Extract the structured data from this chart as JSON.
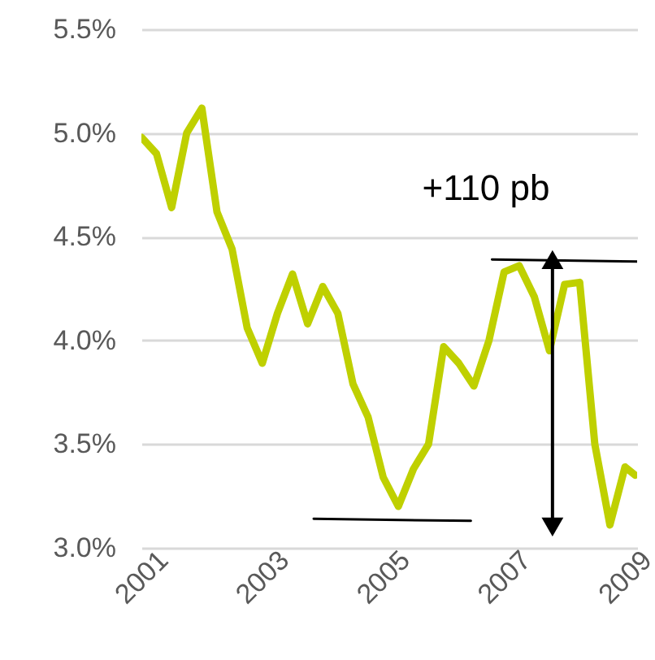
{
  "chart_data": {
    "type": "line",
    "xlim": [
      2001,
      2009.2
    ],
    "xticks": [
      2001,
      2003,
      2005,
      2007,
      2009
    ],
    "ylim": [
      3.0,
      5.5
    ],
    "yticks": [
      {
        "value": 3.0,
        "label": "3.0%"
      },
      {
        "value": 3.5,
        "label": "3.5%"
      },
      {
        "value": 4.0,
        "label": "4.0%"
      },
      {
        "value": 4.5,
        "label": "4.5%"
      },
      {
        "value": 5.0,
        "label": "5.0%"
      },
      {
        "value": 5.5,
        "label": "5.5%"
      }
    ],
    "grid": "y",
    "marker": "none",
    "line_style": "solid",
    "annotations": [
      "+110 pb"
    ],
    "series": [
      {
        "color": "#bfd000",
        "x": [
          2001.0,
          2001.25,
          2001.5,
          2001.75,
          2002.0,
          2002.25,
          2002.5,
          2002.75,
          2003.0,
          2003.25,
          2003.5,
          2003.75,
          2004.0,
          2004.25,
          2004.5,
          2004.75,
          2005.0,
          2005.25,
          2005.5,
          2005.75,
          2006.0,
          2006.25,
          2006.5,
          2006.75,
          2007.0,
          2007.25,
          2007.5,
          2007.75,
          2008.0,
          2008.25,
          2008.5,
          2008.75,
          2009.0,
          2009.17
        ],
        "values": [
          4.98,
          4.9,
          4.64,
          5.0,
          5.12,
          4.62,
          4.44,
          4.06,
          3.89,
          4.13,
          4.32,
          4.08,
          4.26,
          4.13,
          3.79,
          3.63,
          3.34,
          3.2,
          3.38,
          3.5,
          3.97,
          3.89,
          3.78,
          4.0,
          4.33,
          4.36,
          4.21,
          3.95,
          4.27,
          4.28,
          3.5,
          3.11,
          3.39,
          3.35
        ]
      },
      {
        "type": "line",
        "color": "#000000",
        "x": [
          2003.85,
          2006.45
        ],
        "values": [
          3.14,
          3.13
        ]
      },
      {
        "type": "line",
        "color": "#000000",
        "x": [
          2006.8,
          2009.2
        ],
        "values": [
          4.39,
          4.38
        ]
      },
      {
        "type": "line",
        "marker": "triangle",
        "color": "#000000",
        "x": [
          2007.8,
          2007.8
        ],
        "values": [
          3.1,
          4.39
        ]
      }
    ]
  }
}
